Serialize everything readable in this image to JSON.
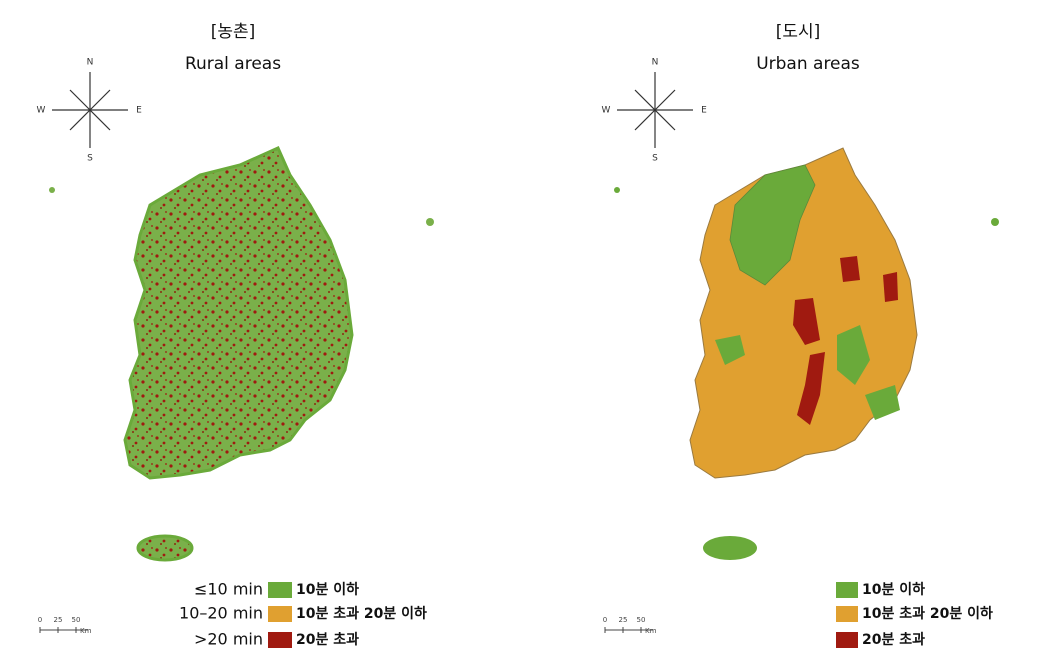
{
  "panels": [
    {
      "title": "[농촌]",
      "subtitle": "Rural areas",
      "compass": {
        "n": "N",
        "e": "E",
        "s": "S",
        "w": "W"
      },
      "scale": {
        "ticks": [
          "0",
          "25",
          "50"
        ],
        "unit": "Km"
      },
      "legend": [
        {
          "label_en": "≤10 min",
          "label": "10분 이하",
          "color": "#6aaa3a"
        },
        {
          "label_en": "10–20 min",
          "label": "10분 초과 20분 이하",
          "color": "#e0a030"
        },
        {
          "label_en": ">20 min",
          "label": "20분 초과",
          "color": "#a01a10"
        }
      ]
    },
    {
      "title": "[도시]",
      "subtitle": "Urban areas",
      "compass": {
        "n": "N",
        "e": "E",
        "s": "S",
        "w": "W"
      },
      "scale": {
        "ticks": [
          "0",
          "25",
          "50"
        ],
        "unit": "Km"
      },
      "legend": [
        {
          "label": "10분 이하",
          "color": "#6aaa3a"
        },
        {
          "label": "10분 초과 20분 이하",
          "color": "#e0a030"
        },
        {
          "label": "20분 초과",
          "color": "#a01a10"
        }
      ]
    }
  ]
}
